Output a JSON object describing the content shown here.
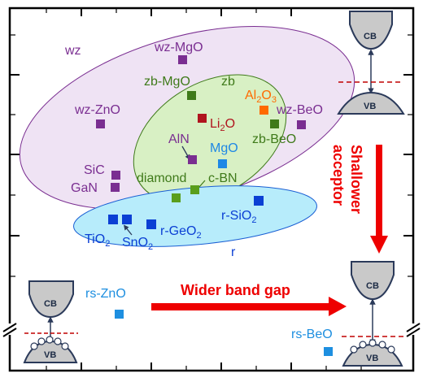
{
  "groups": {
    "wz": "wz",
    "zb": "zb",
    "r": "r"
  },
  "materials": {
    "wz_mgo": "wz-MgO",
    "wz_zno": "wz-ZnO",
    "wz_beo": "wz-BeO",
    "zb_mgo": "zb-MgO",
    "al2o3": {
      "base": "Al",
      "sub1": "2",
      "mid": "O",
      "sub2": "3"
    },
    "li2o": {
      "base": "Li",
      "sub": "2",
      "tail": "O"
    },
    "zb_beo": "zb-BeO",
    "aln": "AlN",
    "mgo": "MgO",
    "sic": "SiC",
    "gan": "GaN",
    "diamond": "diamond",
    "cbn": "c-BN",
    "tio2": {
      "base": "TiO",
      "sub": "2"
    },
    "sno2": {
      "base": "SnO",
      "sub": "2"
    },
    "rgeo2": {
      "base": "r-GeO",
      "sub": "2"
    },
    "rsio2": {
      "base": "r-SiO",
      "sub": "2"
    },
    "rs_zno": "rs-ZnO",
    "rs_beo": "rs-BeO"
  },
  "bands": {
    "cb": "CB",
    "vb": "VB"
  },
  "arrows": {
    "shallower": [
      "Shallower",
      "acceptor"
    ],
    "wider": "Wider band gap"
  },
  "colors": {
    "wz": "#7a2e91",
    "zb": "#3f7a1a",
    "r": "#0b3fd4",
    "al2o3": "#ff6a00",
    "li2o": "#b0141e",
    "mgo": "#1e88e5",
    "rs": "#1e8fe0",
    "arrow": "#ee0000",
    "wz_fill": "#efe3f4",
    "zb_fill": "#d8f0c4",
    "r_fill": "#b7ecfb"
  }
}
